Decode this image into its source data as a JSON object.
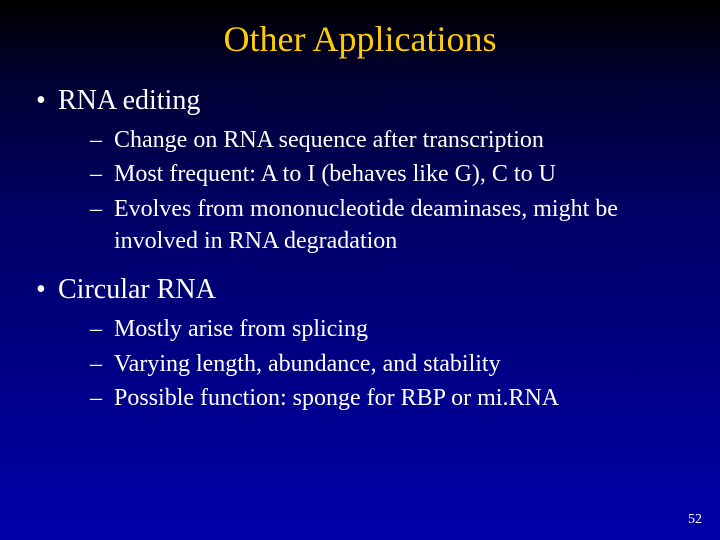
{
  "slide": {
    "title": "Other Applications",
    "bullets": [
      {
        "label": "RNA editing",
        "sub": [
          "Change on RNA sequence after transcription",
          "Most frequent: A to I (behaves like G), C to U",
          "Evolves from mononucleotide deaminases, might be involved in RNA degradation"
        ]
      },
      {
        "label": "Circular RNA",
        "sub": [
          "Mostly arise from splicing",
          "Varying length, abundance, and stability",
          "Possible function: sponge for RBP or mi.RNA"
        ]
      }
    ],
    "page_number": "52"
  },
  "style": {
    "background_gradient": [
      "#000000",
      "#000033",
      "#000066",
      "#0000aa"
    ],
    "title_color": "#ffcc00",
    "text_color": "#ffffff",
    "title_fontsize": 36,
    "level1_fontsize": 28,
    "level2_fontsize": 24,
    "pagenum_fontsize": 14,
    "font_family": "Times New Roman"
  }
}
